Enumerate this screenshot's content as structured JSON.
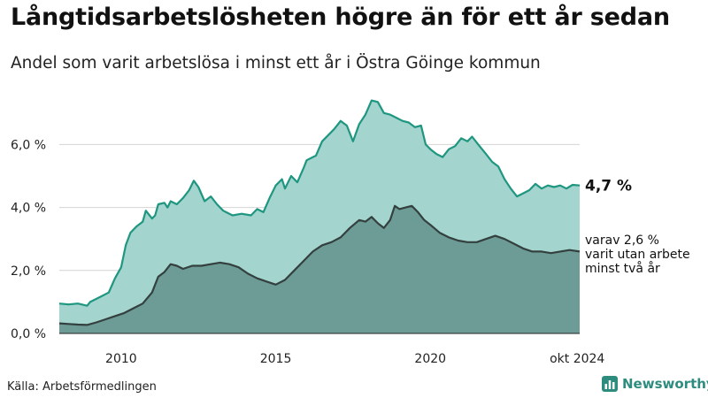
{
  "title": "Långtidsarbetslösheten högre än för ett år sedan",
  "subtitle": "Andel som varit arbetslösa i minst ett år i Östra Göinge kommun",
  "source": "Källa: Arbetsförmedlingen",
  "logo_text": "Newsworthy",
  "colors": {
    "total_fill": "#a3d4cd",
    "total_line": "#1e9680",
    "long_fill": "#6d9c96",
    "long_line": "#33403f",
    "grid": "#d4d4d4",
    "brand": "#2e8c7f"
  },
  "chart_data": {
    "type": "area",
    "title": "Långtidsarbetslösheten högre än för ett år sedan",
    "xlabel": "",
    "ylabel": "",
    "xlim": [
      2008.0,
      2024.83
    ],
    "ylim": [
      0,
      7.5
    ],
    "y_ticks": [
      "0,0 %",
      "2,0 %",
      "4,0 %",
      "6,0 %"
    ],
    "y_tick_values": [
      0,
      2,
      4,
      6
    ],
    "x_ticks": [
      "2010",
      "2015",
      "2020",
      "okt 2024"
    ],
    "x_tick_values": [
      2010,
      2015,
      2020,
      2024.75
    ],
    "grid": true,
    "series": [
      {
        "name": "Arbetslösa minst ett år",
        "end_label": "4,7 %",
        "points": [
          [
            2008.0,
            0.95
          ],
          [
            2008.3,
            0.92
          ],
          [
            2008.6,
            0.95
          ],
          [
            2008.9,
            0.88
          ],
          [
            2009.0,
            1.0
          ],
          [
            2009.3,
            1.15
          ],
          [
            2009.6,
            1.3
          ],
          [
            2009.8,
            1.75
          ],
          [
            2010.0,
            2.1
          ],
          [
            2010.15,
            2.8
          ],
          [
            2010.3,
            3.2
          ],
          [
            2010.5,
            3.4
          ],
          [
            2010.7,
            3.55
          ],
          [
            2010.8,
            3.9
          ],
          [
            2011.0,
            3.65
          ],
          [
            2011.1,
            3.75
          ],
          [
            2011.2,
            4.1
          ],
          [
            2011.4,
            4.15
          ],
          [
            2011.5,
            4.0
          ],
          [
            2011.6,
            4.2
          ],
          [
            2011.8,
            4.1
          ],
          [
            2012.0,
            4.3
          ],
          [
            2012.2,
            4.55
          ],
          [
            2012.35,
            4.85
          ],
          [
            2012.5,
            4.65
          ],
          [
            2012.7,
            4.2
          ],
          [
            2012.9,
            4.35
          ],
          [
            2013.1,
            4.1
          ],
          [
            2013.3,
            3.9
          ],
          [
            2013.6,
            3.75
          ],
          [
            2013.9,
            3.8
          ],
          [
            2014.2,
            3.75
          ],
          [
            2014.4,
            3.95
          ],
          [
            2014.6,
            3.85
          ],
          [
            2014.8,
            4.3
          ],
          [
            2015.0,
            4.7
          ],
          [
            2015.2,
            4.9
          ],
          [
            2015.3,
            4.6
          ],
          [
            2015.5,
            5.0
          ],
          [
            2015.7,
            4.8
          ],
          [
            2015.9,
            5.25
          ],
          [
            2016.0,
            5.5
          ],
          [
            2016.3,
            5.65
          ],
          [
            2016.5,
            6.1
          ],
          [
            2016.7,
            6.3
          ],
          [
            2016.9,
            6.5
          ],
          [
            2017.1,
            6.75
          ],
          [
            2017.3,
            6.6
          ],
          [
            2017.5,
            6.1
          ],
          [
            2017.7,
            6.65
          ],
          [
            2017.9,
            6.95
          ],
          [
            2018.1,
            7.4
          ],
          [
            2018.3,
            7.35
          ],
          [
            2018.5,
            7.0
          ],
          [
            2018.7,
            6.95
          ],
          [
            2018.9,
            6.85
          ],
          [
            2019.1,
            6.75
          ],
          [
            2019.3,
            6.7
          ],
          [
            2019.5,
            6.55
          ],
          [
            2019.7,
            6.6
          ],
          [
            2019.85,
            6.0
          ],
          [
            2020.0,
            5.85
          ],
          [
            2020.2,
            5.7
          ],
          [
            2020.4,
            5.6
          ],
          [
            2020.6,
            5.85
          ],
          [
            2020.8,
            5.95
          ],
          [
            2021.0,
            6.2
          ],
          [
            2021.2,
            6.1
          ],
          [
            2021.35,
            6.25
          ],
          [
            2021.55,
            6.0
          ],
          [
            2021.8,
            5.7
          ],
          [
            2022.0,
            5.45
          ],
          [
            2022.2,
            5.3
          ],
          [
            2022.4,
            4.9
          ],
          [
            2022.6,
            4.6
          ],
          [
            2022.8,
            4.35
          ],
          [
            2023.0,
            4.45
          ],
          [
            2023.2,
            4.55
          ],
          [
            2023.4,
            4.75
          ],
          [
            2023.6,
            4.6
          ],
          [
            2023.8,
            4.7
          ],
          [
            2024.0,
            4.65
          ],
          [
            2024.2,
            4.7
          ],
          [
            2024.4,
            4.6
          ],
          [
            2024.6,
            4.72
          ],
          [
            2024.83,
            4.7
          ]
        ]
      },
      {
        "name": "varav minst två år",
        "end_label": [
          "varav 2,6 %",
          "varit utan arbete",
          "minst två år"
        ],
        "points": [
          [
            2008.0,
            0.32
          ],
          [
            2008.3,
            0.3
          ],
          [
            2008.6,
            0.28
          ],
          [
            2008.9,
            0.27
          ],
          [
            2009.2,
            0.35
          ],
          [
            2009.5,
            0.45
          ],
          [
            2009.8,
            0.55
          ],
          [
            2010.1,
            0.65
          ],
          [
            2010.4,
            0.8
          ],
          [
            2010.7,
            0.95
          ],
          [
            2011.0,
            1.3
          ],
          [
            2011.2,
            1.8
          ],
          [
            2011.4,
            1.95
          ],
          [
            2011.6,
            2.2
          ],
          [
            2011.8,
            2.15
          ],
          [
            2012.0,
            2.05
          ],
          [
            2012.3,
            2.15
          ],
          [
            2012.6,
            2.15
          ],
          [
            2012.9,
            2.2
          ],
          [
            2013.2,
            2.25
          ],
          [
            2013.5,
            2.2
          ],
          [
            2013.8,
            2.1
          ],
          [
            2014.1,
            1.9
          ],
          [
            2014.4,
            1.75
          ],
          [
            2014.7,
            1.65
          ],
          [
            2015.0,
            1.55
          ],
          [
            2015.3,
            1.7
          ],
          [
            2015.6,
            2.0
          ],
          [
            2015.9,
            2.3
          ],
          [
            2016.2,
            2.6
          ],
          [
            2016.5,
            2.8
          ],
          [
            2016.8,
            2.9
          ],
          [
            2017.1,
            3.05
          ],
          [
            2017.4,
            3.35
          ],
          [
            2017.7,
            3.6
          ],
          [
            2017.9,
            3.55
          ],
          [
            2018.1,
            3.7
          ],
          [
            2018.3,
            3.5
          ],
          [
            2018.5,
            3.35
          ],
          [
            2018.7,
            3.6
          ],
          [
            2018.85,
            4.05
          ],
          [
            2019.0,
            3.95
          ],
          [
            2019.2,
            4.0
          ],
          [
            2019.4,
            4.05
          ],
          [
            2019.6,
            3.85
          ],
          [
            2019.8,
            3.6
          ],
          [
            2020.0,
            3.45
          ],
          [
            2020.3,
            3.2
          ],
          [
            2020.6,
            3.05
          ],
          [
            2020.9,
            2.95
          ],
          [
            2021.2,
            2.9
          ],
          [
            2021.5,
            2.9
          ],
          [
            2021.8,
            3.0
          ],
          [
            2022.1,
            3.1
          ],
          [
            2022.4,
            3.0
          ],
          [
            2022.7,
            2.85
          ],
          [
            2023.0,
            2.7
          ],
          [
            2023.3,
            2.6
          ],
          [
            2023.6,
            2.6
          ],
          [
            2023.9,
            2.55
          ],
          [
            2024.2,
            2.6
          ],
          [
            2024.5,
            2.65
          ],
          [
            2024.83,
            2.6
          ]
        ]
      }
    ]
  }
}
